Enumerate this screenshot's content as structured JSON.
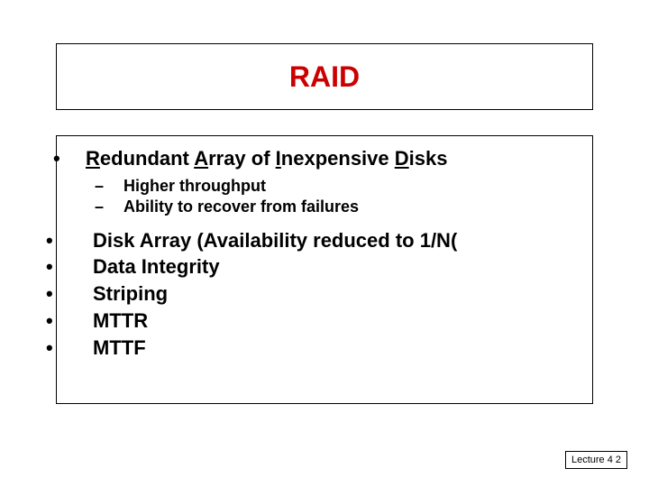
{
  "title": "RAID",
  "title_color": "#cc0000",
  "expansion": {
    "bullet": "•",
    "parts": [
      {
        "u": "R",
        "t": "edundant "
      },
      {
        "u": "A",
        "t": "rray of "
      },
      {
        "u": "I",
        "t": "nexpensive "
      },
      {
        "u": "D",
        "t": "isks"
      }
    ]
  },
  "sub": {
    "dash": "–",
    "items": [
      "Higher throughput",
      "Ability to recover from failures"
    ]
  },
  "main": {
    "bullet": "•",
    "items": [
      "Disk Array  (Availability reduced to 1/N(",
      "Data Integrity",
      "Striping",
      "MTTR",
      "MTTF"
    ]
  },
  "footer": "Lecture 4 2",
  "colors": {
    "border": "#000000",
    "text": "#000000",
    "background": "#ffffff"
  },
  "font": {
    "family": "Arial",
    "title_size": 32,
    "body_size": 22,
    "sub_size": 18,
    "footer_size": 11
  }
}
